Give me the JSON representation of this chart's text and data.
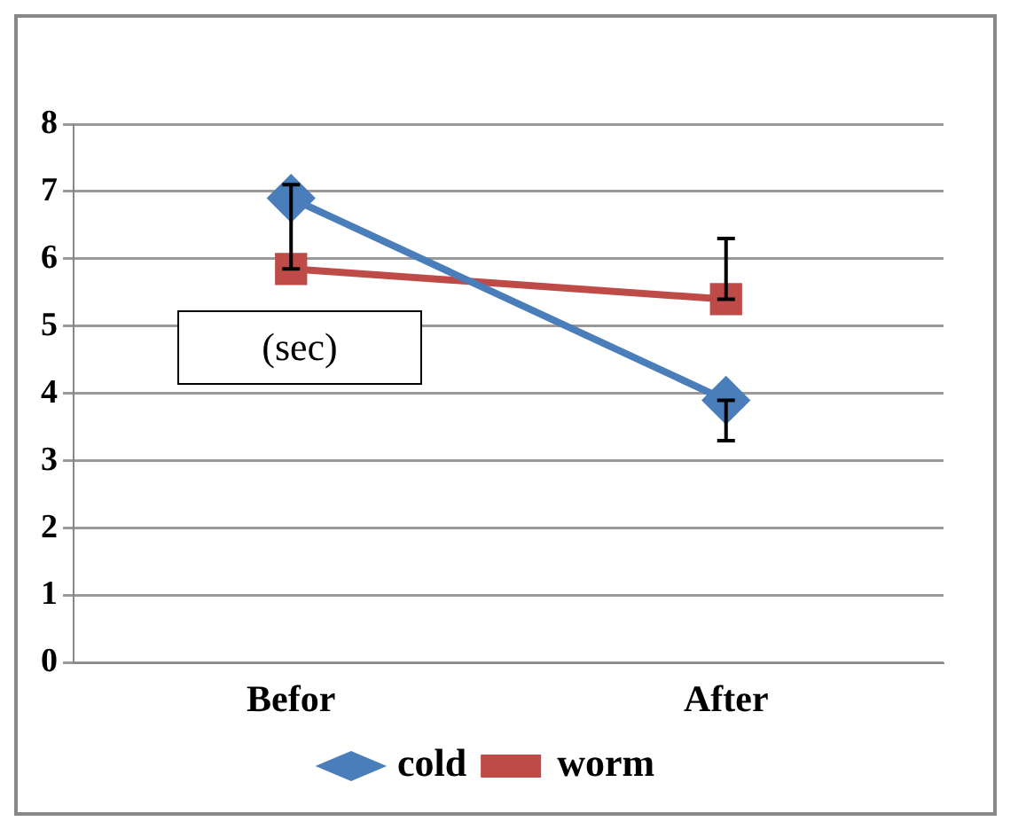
{
  "chart_data": {
    "type": "line",
    "categories": [
      "Befor",
      "After"
    ],
    "series": [
      {
        "name": "cold",
        "color": "#4a7ebb",
        "values": [
          6.9,
          3.9
        ],
        "marker": "diamond",
        "errors": [
          null,
          [
            3.3,
            3.9
          ]
        ]
      },
      {
        "name": "worm",
        "color": "#be4b48",
        "values": [
          5.85,
          5.4
        ],
        "marker": "square",
        "errors": [
          [
            5.85,
            7.1
          ],
          [
            5.4,
            6.3
          ]
        ]
      }
    ],
    "ylim": [
      0,
      8
    ],
    "yticks": [
      0,
      1,
      2,
      3,
      4,
      5,
      6,
      7,
      8
    ],
    "grid": "y",
    "legend": "bottom",
    "annotations": [
      "(sec)"
    ]
  }
}
